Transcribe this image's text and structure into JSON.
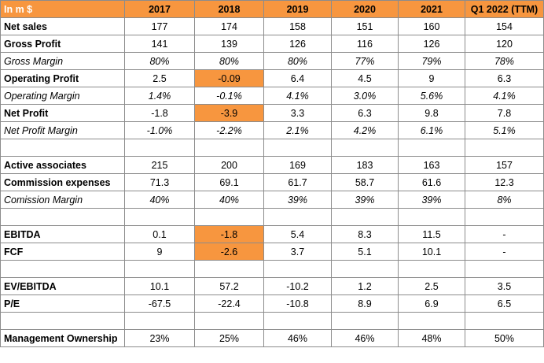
{
  "table": {
    "header": [
      "In m $",
      "2017",
      "2018",
      "2019",
      "2020",
      "2021",
      "Q1 2022 (TTM)"
    ],
    "rows": [
      [
        "Net sales",
        "177",
        "174",
        "158",
        "151",
        "160",
        "154"
      ],
      [
        "Gross Profit",
        "141",
        "139",
        "126",
        "116",
        "126",
        "120"
      ],
      [
        "Gross Margin",
        "80%",
        "80%",
        "80%",
        "77%",
        "79%",
        "78%"
      ],
      [
        "Operating Profit",
        "2.5",
        "-0.09",
        "6.4",
        "4.5",
        "9",
        "6.3"
      ],
      [
        "Operating Margin",
        "1.4%",
        "-0.1%",
        "4.1%",
        "3.0%",
        "5.6%",
        "4.1%"
      ],
      [
        "Net Profit",
        "-1.8",
        "-3.9",
        "3.3",
        "6.3",
        "9.8",
        "7.8"
      ],
      [
        "Net Profit Margin",
        "-1.0%",
        "-2.2%",
        "2.1%",
        "4.2%",
        "6.1%",
        "5.1%"
      ],
      [
        "Active associates",
        "215",
        "200",
        "169",
        "183",
        "163",
        "157"
      ],
      [
        "Commission expenses",
        "71.3",
        "69.1",
        "61.7",
        "58.7",
        "61.6",
        "12.3"
      ],
      [
        "Comission Margin",
        "40%",
        "40%",
        "39%",
        "39%",
        "39%",
        "8%"
      ],
      [
        "EBITDA",
        "0.1",
        "-1.8",
        "5.4",
        "8.3",
        "11.5",
        "-"
      ],
      [
        "FCF",
        "9",
        "-2.6",
        "3.7",
        "5.1",
        "10.1",
        "-"
      ],
      [
        "EV/EBITDA",
        "10.1",
        "57.2",
        "-10.2",
        "1.2",
        "2.5",
        "3.5"
      ],
      [
        "P/E",
        "-67.5",
        "-22.4",
        "-10.8",
        "8.9",
        "6.9",
        "6.5"
      ],
      [
        "Management Ownership",
        "23%",
        "25%",
        "46%",
        "46%",
        "48%",
        "50%"
      ]
    ]
  }
}
